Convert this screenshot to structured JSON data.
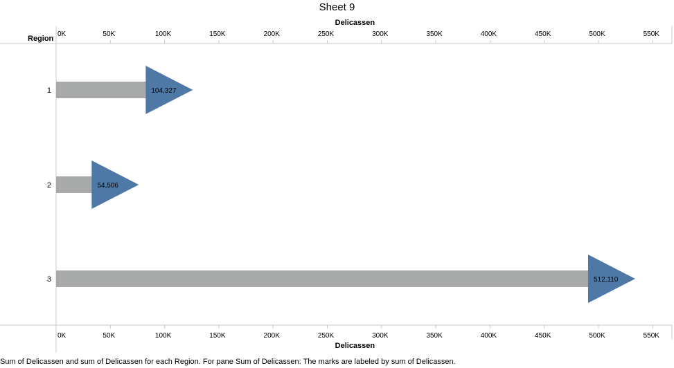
{
  "sheet_title": "Sheet 9",
  "caption": "Sum of Delicassen and sum of Delicassen for each Region.  For pane Sum of Delicassen:  The marks are labeled by sum of Delicassen.",
  "colors": {
    "bar": "#a7aaa8",
    "arrow": "#4e79a7",
    "axis": "#c8c8c8"
  },
  "chart_data": {
    "type": "bar",
    "title": "Sheet 9",
    "row_header": "Region",
    "xlabel_top": "Delicassen",
    "xlabel_bottom": "Delicassen",
    "categories": [
      "1",
      "2",
      "3"
    ],
    "values": [
      104327,
      54506,
      512110
    ],
    "value_labels": [
      "104,327",
      "54,506",
      "512,110"
    ],
    "marker": "triangle-right",
    "ticks": [
      0,
      50000,
      100000,
      150000,
      200000,
      250000,
      300000,
      350000,
      400000,
      450000,
      500000,
      550000
    ],
    "tick_labels": [
      "0K",
      "50K",
      "100K",
      "150K",
      "200K",
      "250K",
      "300K",
      "350K",
      "400K",
      "450K",
      "500K",
      "550K"
    ],
    "xlim": [
      0,
      560000
    ],
    "grid": false
  }
}
